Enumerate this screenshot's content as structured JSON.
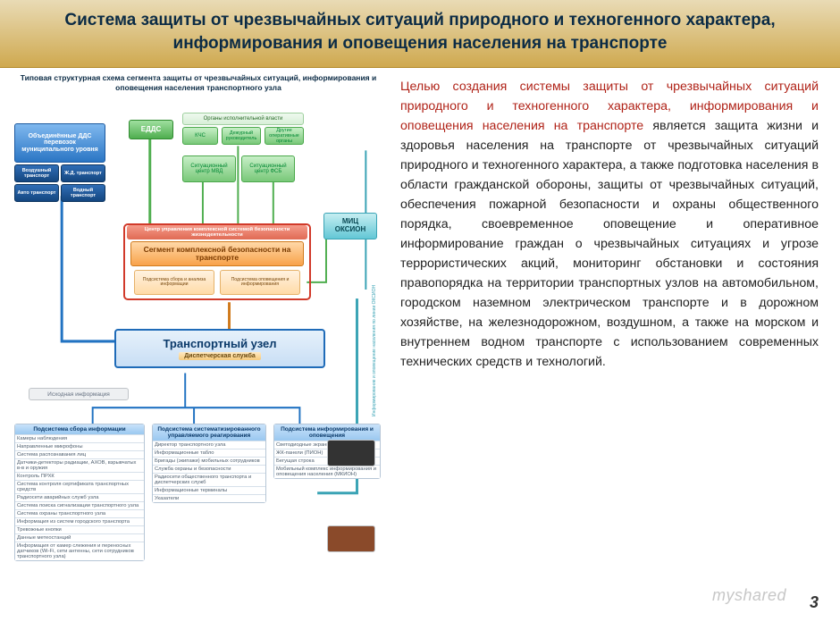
{
  "title": "Система защиты от чрезвычайных ситуаций природного и техногенного характера, информирования и оповещения населения на транспорте",
  "page_number": "3",
  "watermark": "myshared",
  "colors": {
    "title_bg_top": "#e9dbb5",
    "title_bg_bot": "#cfa94f",
    "highlight": "#b02318",
    "body_text": "#222222",
    "blue": "#2b76c4",
    "green": "#4fae4f",
    "cyan": "#63c7d6",
    "orange": "#f8a24a",
    "red": "#d13a2a"
  },
  "paragraph": {
    "highlight": "Целью создания системы защиты от чрезвычайных ситуаций природного и техногенного характера, информирования и оповещения населения на транспорте",
    "rest": " является защита жизни и здоровья населения на транспорте от чрезвычайных ситуаций природного и техногенного характера, а также подготовка населения в области гражданской обороны, защиты от чрезвычайных ситуаций, обеспечения пожарной безопасности и охраны общественного порядка, своевременное оповещение и оперативное информирование граждан о чрезвычайных ситуациях и угрозе террористических акций, мониторинг обстановки и состояния правопорядка на территории транспортных узлов на автомобильном, городском наземном электрическом транспорте и в дорожном хозяйстве, на железнодорожном, воздушном, а также на морском и внутреннем водном транспорте с использованием современных технических средств и технологий."
  },
  "diagram": {
    "title": "Типовая структурная схема сегмента защиты от чрезвычайных ситуаций, информирования и оповещения населения транспортного узла",
    "dds_label": "Объединённые ДДС перевозок муниципального уровня",
    "dds_items": [
      "Воздушный транспорт",
      "Ж.Д. транспорт",
      "Авто транспорт",
      "Водный транспорт"
    ],
    "edds": "ЕДДС",
    "exec_power": "Органы исполнительной власти",
    "exec_items": [
      "КЧС",
      "Дежурный руководитель",
      "Другие оперативные органы"
    ],
    "sit_mvd": "Ситуационный центр МВД",
    "sit_fsb": "Ситуационный центр ФСБ",
    "red_header": "Центр управления комплексной системой безопасности жизнедеятельности",
    "orange_main": "Сегмент комплексной безопасности на транспорте",
    "orange_items": [
      "Подсистема сбора и анализа информации",
      "Подсистема оповещения и информирования"
    ],
    "mic": "МИЦ ОКСИОН",
    "transport_node": "Транспортный узел",
    "dispatch": "Диспетчерская служба",
    "source_info": "Исходная информация",
    "side_label": "Информирование и оповещение населения по линии ОКСИОН",
    "col1_hdr": "Подсистема сбора информации",
    "col1_items": [
      "Камеры наблюдения",
      "Направленные микрофоны",
      "Система распознавания лиц",
      "Датчики-детекторы радиации, АХОВ, взрывчатых в-в и оружия",
      "Контроль ПРХК",
      "Система контроля сертификата транспортных средств",
      "Радиосети аварийных служб узла",
      "Система поиска сигнализации транспортного узла",
      "Система охраны транспортного узла",
      "Информация из систем городского транспорта",
      "Тревожные кнопки",
      "Данные метеостанций",
      "Информация от камер слежения и переносных датчиков (Wi-Fi, сети антенны, сети сотрудников транспортного узла)"
    ],
    "col2_hdr": "Подсистема систематизированного управляемого реагирования",
    "col2_items": [
      "Директор транспортного узла",
      "Информационные табло",
      "Бригады (экипажи) мобильных сотрудников",
      "Служба охраны и безопасности",
      "Радиосети общественного транспорта и диспетчерских служб",
      "Информационные терминалы",
      "Указатели"
    ],
    "col3_hdr": "Подсистема информирования и оповещения",
    "col3_items": [
      "Светодиодные экраны (ПУОН)",
      "ЖК-панели (ПИОН)",
      "Бегущая строка",
      "Мобильный комплекс информирования и оповещения населения (МКИОН)"
    ]
  }
}
